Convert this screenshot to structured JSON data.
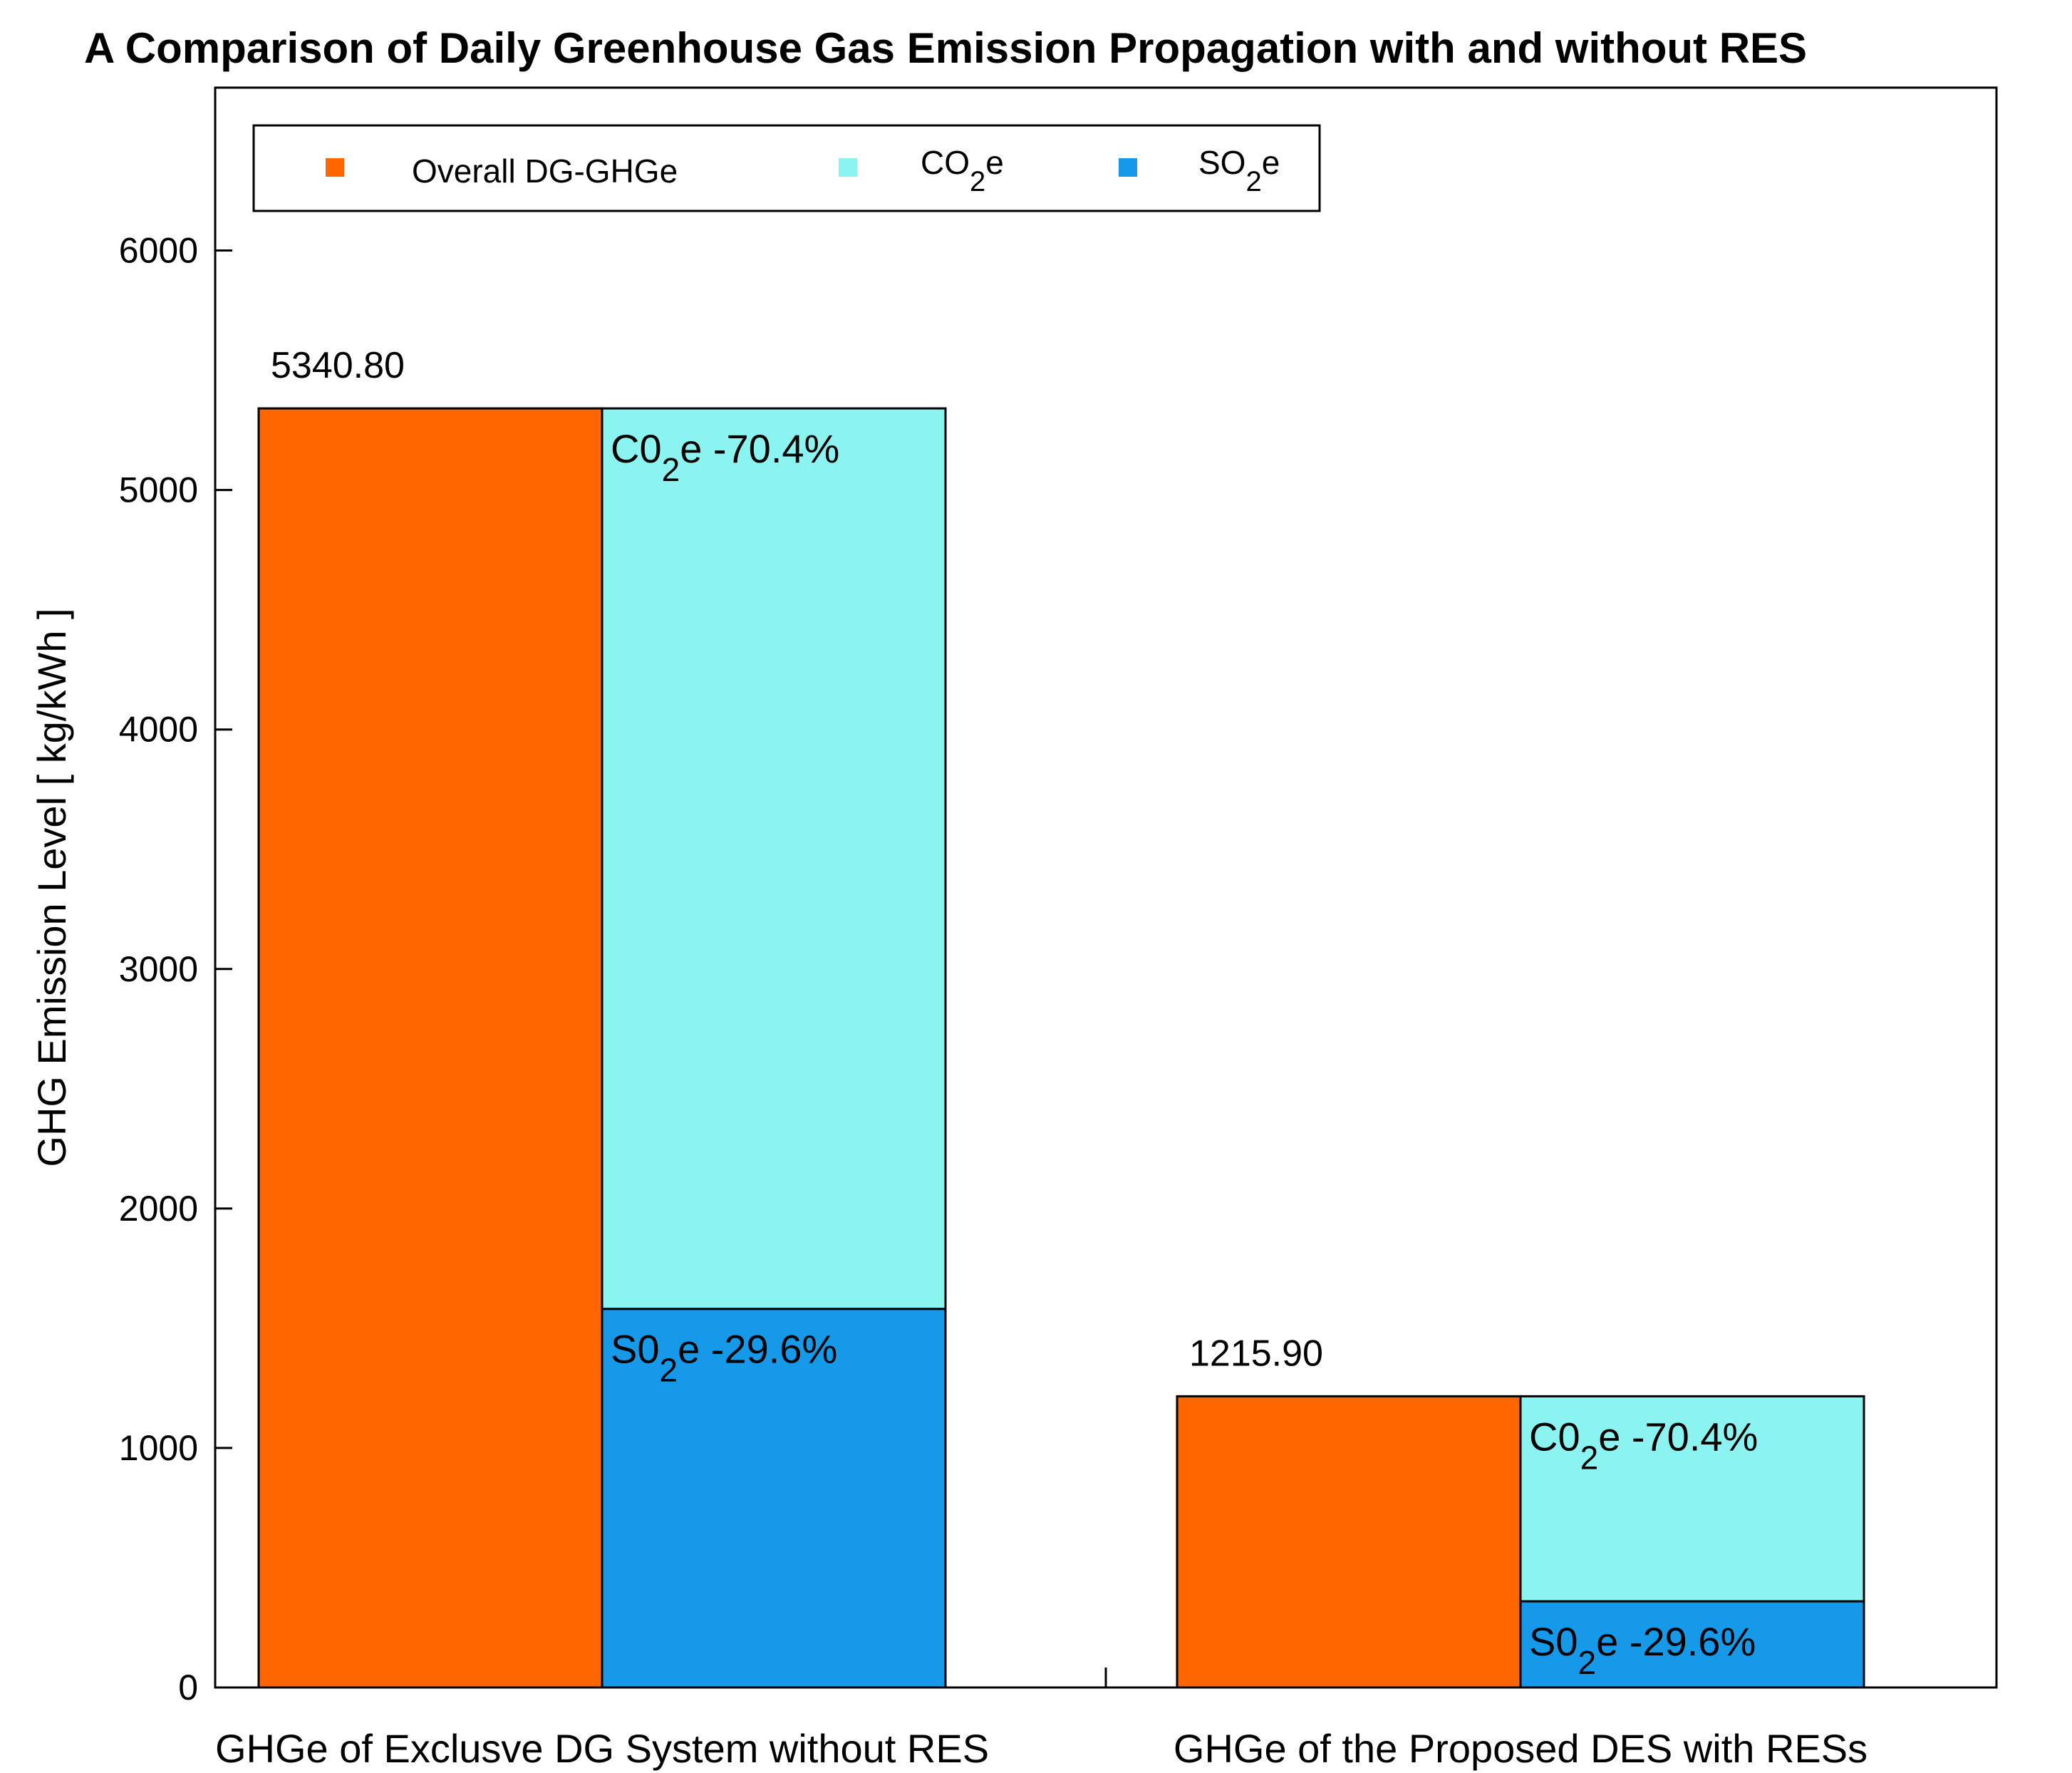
{
  "chart_data": {
    "type": "bar",
    "title": "A Comparison of Daily Greenhouse Gas Emission Propagation with and without RES",
    "xlabel": "",
    "ylabel": "GHG Emission Level [ kg/kWh ]",
    "ylim": [
      0,
      6680
    ],
    "yticks": [
      0,
      1000,
      2000,
      3000,
      4000,
      5000,
      6000
    ],
    "grid": false,
    "legend_position": "top-left",
    "legend": [
      {
        "name": "Overall DG-GHGe",
        "text": "Overall DG-GHGe",
        "base": "",
        "sub": "",
        "tail": ""
      },
      {
        "name": "CO2e",
        "text": "",
        "base": "CO",
        "sub": "2",
        "tail": "e"
      },
      {
        "name": "SO2e",
        "text": "",
        "base": "SO",
        "sub": "2",
        "tail": "e"
      }
    ],
    "categories": [
      "GHGe of Exclusve DG System without RES",
      "GHGe of the Proposed DES with RESs"
    ],
    "series": [
      {
        "name": "Overall DG-GHGe",
        "values": [
          5340.8,
          1215.9
        ]
      },
      {
        "name": "CO2e",
        "values": [
          3759.9,
          856.0
        ]
      },
      {
        "name": "SO2e",
        "values": [
          1580.9,
          359.9
        ]
      }
    ],
    "value_labels": [
      "5340.80",
      "1215.90"
    ],
    "segment_labels": {
      "co2": {
        "base": "C0",
        "sub": "2",
        "tail": "e -70.4%"
      },
      "so2": {
        "base": "S0",
        "sub": "2",
        "tail": "e -29.6%"
      }
    },
    "colors": {
      "overall": "#FF6600",
      "co2": "#8BF3F0",
      "so2": "#1599E8"
    }
  }
}
